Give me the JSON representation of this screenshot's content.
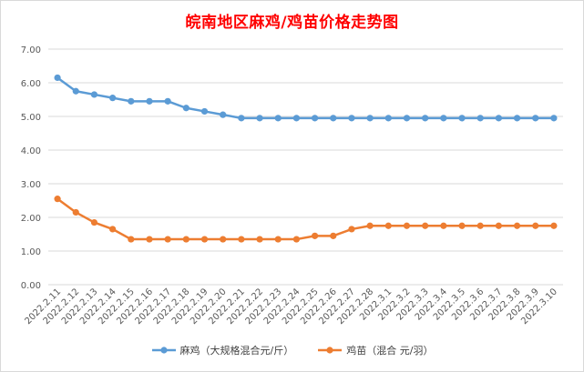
{
  "chart_data": {
    "type": "line",
    "title": "皖南地区麻鸡/鸡苗价格走势图",
    "categories": [
      "2022.2.11",
      "2022.2.12",
      "2022.2.13",
      "2022.2.14",
      "2022.2.15",
      "2022.2.16",
      "2022.2.17",
      "2022.2.18",
      "2022.2.19",
      "2022.2.20",
      "2022.2.21",
      "2022.2.22",
      "2022.2.23",
      "2022.2.24",
      "2022.2.25",
      "2022.2.26",
      "2022.2.27",
      "2022.2.28",
      "2022.3.1",
      "2022.3.2",
      "2022.3.3",
      "2022.3.4",
      "2022.3.5",
      "2022.3.6",
      "2022.3.7",
      "2022.3.8",
      "2022.3.9",
      "2022.3.10"
    ],
    "ylim": [
      0,
      7
    ],
    "yticks": [
      "0.00",
      "1.00",
      "2.00",
      "3.00",
      "4.00",
      "5.00",
      "6.00",
      "7.00"
    ],
    "grid": true,
    "legend_position": "bottom",
    "series": [
      {
        "name": "麻鸡（大规格混合元/斤）",
        "color": "#5b9bd5",
        "values": [
          6.15,
          5.75,
          5.65,
          5.55,
          5.45,
          5.45,
          5.45,
          5.25,
          5.15,
          5.05,
          4.95,
          4.95,
          4.95,
          4.95,
          4.95,
          4.95,
          4.95,
          4.95,
          4.95,
          4.95,
          4.95,
          4.95,
          4.95,
          4.95,
          4.95,
          4.95,
          4.95,
          4.95
        ]
      },
      {
        "name": "鸡苗（混合 元/羽）",
        "color": "#ed7d31",
        "values": [
          2.55,
          2.15,
          1.85,
          1.65,
          1.35,
          1.35,
          1.35,
          1.35,
          1.35,
          1.35,
          1.35,
          1.35,
          1.35,
          1.35,
          1.45,
          1.45,
          1.65,
          1.75,
          1.75,
          1.75,
          1.75,
          1.75,
          1.75,
          1.75,
          1.75,
          1.75,
          1.75,
          1.75
        ]
      }
    ]
  }
}
